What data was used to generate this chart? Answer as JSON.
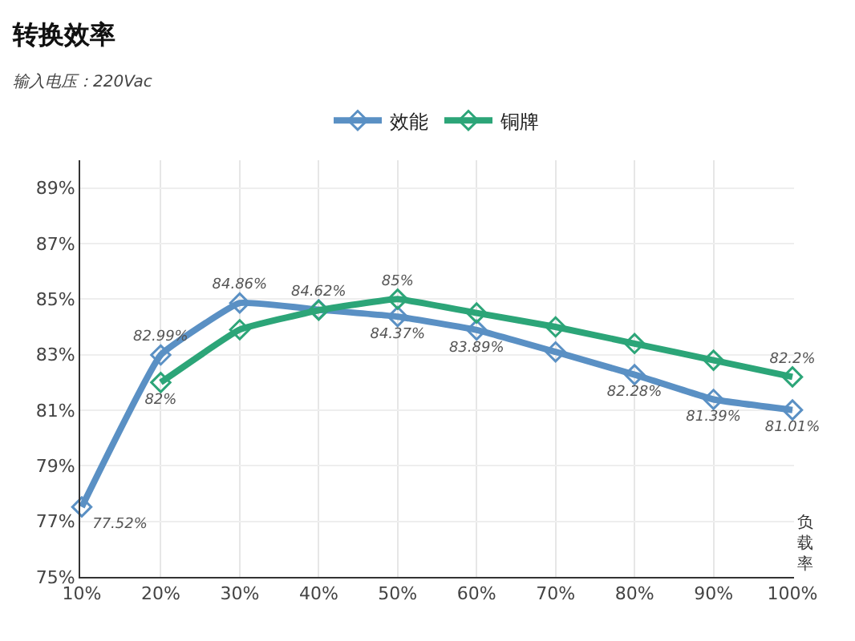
{
  "chart_data": {
    "type": "line",
    "title": "转换效率",
    "subtitle": "输入电压：220Vac",
    "xlabel": "负载率",
    "categories": [
      "10%",
      "20%",
      "30%",
      "40%",
      "50%",
      "60%",
      "70%",
      "80%",
      "90%",
      "100%"
    ],
    "series": [
      {
        "name": "效能",
        "color": "#5a90c4",
        "values": [
          77.52,
          82.99,
          84.86,
          84.62,
          84.37,
          83.89,
          83.1,
          82.28,
          81.39,
          81.01
        ],
        "value_labels": [
          "77.52%",
          "82.99%",
          "84.86%",
          "84.62%",
          "84.37%",
          "83.89%",
          null,
          "82.28%",
          "81.39%",
          "81.01%"
        ]
      },
      {
        "name": "铜牌",
        "color": "#2ca578",
        "values": [
          null,
          82,
          83.9,
          84.6,
          85,
          84.5,
          84.0,
          83.4,
          82.8,
          82.2
        ],
        "value_labels": [
          null,
          "82%",
          null,
          null,
          "85%",
          null,
          null,
          null,
          null,
          "82.2%"
        ]
      }
    ],
    "ylim": [
      75,
      90
    ],
    "yticks": [
      {
        "value": 75,
        "label": "75%"
      },
      {
        "value": 77,
        "label": "77%"
      },
      {
        "value": 79,
        "label": "79%"
      },
      {
        "value": 81,
        "label": "81%"
      },
      {
        "value": 83,
        "label": "83%"
      },
      {
        "value": 85,
        "label": "85%"
      },
      {
        "value": 87,
        "label": "87%"
      },
      {
        "value": 89,
        "label": "89%"
      }
    ],
    "grid": true,
    "legend": "top",
    "marker": "diamond",
    "line_style": "solid"
  }
}
